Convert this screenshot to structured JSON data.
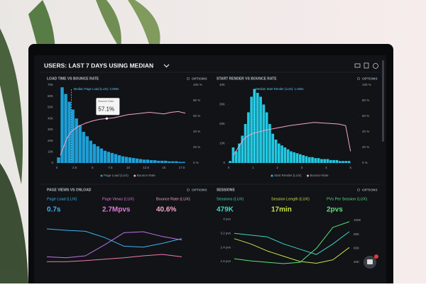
{
  "header": {
    "title": "USERS: LAST 7 DAYS USING MEDIAN"
  },
  "panels": [
    {
      "title": "LOAD TIME VS BOUNCE RATE",
      "options": "OPTIONS",
      "chart": {
        "type": "histogram",
        "bars": {
          "name": "Page Load (LUX)",
          "color": "#1e9fd6",
          "bins": [
            0,
            0.5,
            1,
            1.5,
            2,
            2.5,
            3,
            3.5,
            4,
            4.5,
            5,
            5.5,
            6,
            6.5,
            7,
            7.5,
            8,
            8.5,
            9,
            9.5,
            10,
            10.5,
            11,
            11.5,
            12,
            12.5,
            13,
            13.5,
            14,
            14.5,
            15,
            15.5,
            16,
            16.5,
            17,
            17.5,
            18
          ],
          "values": [
            5000,
            68000,
            62000,
            55000,
            48000,
            40000,
            34000,
            28000,
            24000,
            20000,
            17000,
            15000,
            13000,
            11000,
            10000,
            9000,
            8000,
            7000,
            6000,
            5500,
            5000,
            4500,
            4000,
            3500,
            3000,
            3000,
            2500,
            2500,
            2000,
            2000,
            2000,
            1500,
            1500,
            1500,
            1000,
            1000
          ]
        },
        "series": [
          {
            "name": "Bounce Rate",
            "color": "#f2a6c6",
            "axis": "y2",
            "x": [
              0.5,
              1,
              1.5,
              2,
              3,
              4,
              5,
              6,
              7,
              8,
              9,
              10,
              11,
              12,
              13,
              14,
              15,
              16,
              17,
              18
            ],
            "values": [
              10,
              22,
              33,
              40,
              47,
              51,
              54,
              56,
              57.1,
              58,
              60,
              62,
              63,
              64,
              65,
              64,
              63,
              65,
              66,
              64
            ]
          }
        ],
        "xlim": [
          0,
          18.5
        ],
        "xticks": [
          0,
          2.5,
          5,
          7.5,
          10,
          12.5,
          15,
          17.5
        ],
        "ylim": [
          0,
          70000
        ],
        "yticks": [
          0,
          {
            "value": 10000,
            "label": "10K"
          },
          {
            "value": 20000,
            "label": "20K"
          },
          {
            "value": 30000,
            "label": "30K"
          },
          {
            "value": 40000,
            "label": "40K"
          },
          {
            "value": 50000,
            "label": "50K"
          },
          {
            "value": 60000,
            "label": "60K"
          },
          {
            "value": 70000,
            "label": "70K"
          }
        ],
        "y2lim": [
          0,
          100
        ],
        "y2ticks": [
          {
            "value": 0,
            "label": "0 %"
          },
          {
            "value": 20,
            "label": "20 %"
          },
          {
            "value": 40,
            "label": "40 %"
          },
          {
            "value": 60,
            "label": "60 %"
          },
          {
            "value": 80,
            "label": "80 %"
          },
          {
            "value": 100,
            "label": "100 %"
          }
        ],
        "median": {
          "label": "Median Page Load (LUX): 2.050s",
          "value": 2.05
        },
        "tooltip": {
          "title": "Bounce Rate",
          "text": "57.1%",
          "x": 7,
          "value": 57.1
        }
      }
    },
    {
      "title": "START RENDER VS BOUNCE RATE",
      "options": "OPTIONS",
      "chart": {
        "type": "histogram",
        "bars": {
          "name": "Start Render (LUX)",
          "color": "#22c8e2",
          "bins": [
            0,
            0.125,
            0.25,
            0.375,
            0.5,
            0.625,
            0.75,
            0.875,
            1,
            1.125,
            1.25,
            1.375,
            1.5,
            1.625,
            1.75,
            1.875,
            2,
            2.125,
            2.25,
            2.375,
            2.5,
            2.625,
            2.75,
            2.875,
            3,
            3.125,
            3.25,
            3.375,
            3.5,
            3.625,
            3.75,
            3.875,
            4,
            4.125,
            4.25,
            4.375,
            4.5,
            4.625,
            4.75,
            4.875,
            5
          ],
          "values": [
            1000,
            8000,
            6000,
            10000,
            14000,
            20000,
            26000,
            34000,
            38000,
            36000,
            34000,
            30000,
            26000,
            20000,
            15000,
            12000,
            10000,
            9000,
            8000,
            7000,
            6000,
            5500,
            5000,
            4500,
            4000,
            3500,
            3000,
            3000,
            2500,
            2500,
            2000,
            2000,
            2000,
            1500,
            1500,
            1500,
            1000,
            1000,
            1000,
            1000
          ]
        },
        "series": [
          {
            "name": "Bounce Rate",
            "color": "#f2a6c6",
            "axis": "y2",
            "x": [
              0.2,
              0.4,
              0.6,
              0.8,
              1,
              1.5,
              2,
              2.5,
              3,
              3.5,
              4,
              4.5,
              4.8,
              5
            ],
            "values": [
              10,
              20,
              30,
              35,
              38,
              42,
              45,
              48,
              50,
              52,
              51,
              50,
              48,
              15
            ]
          }
        ],
        "xlim": [
          0,
          5.3
        ],
        "xticks": [
          0,
          1,
          2,
          3,
          4,
          5
        ],
        "ylim": [
          0,
          40000
        ],
        "yticks": [
          0,
          {
            "value": 10000,
            "label": "10K"
          },
          {
            "value": 20000,
            "label": "20K"
          },
          {
            "value": 30000,
            "label": "30K"
          },
          {
            "value": 40000,
            "label": "40K"
          }
        ],
        "y2lim": [
          0,
          100
        ],
        "y2ticks": [
          {
            "value": 0,
            "label": "0 %"
          },
          {
            "value": 20,
            "label": "20 %"
          },
          {
            "value": 40,
            "label": "40 %"
          },
          {
            "value": 60,
            "label": "60 %"
          },
          {
            "value": 80,
            "label": "80 %"
          },
          {
            "value": 100,
            "label": "100 %"
          }
        ],
        "median": {
          "label": "Median Start Render (LUX): 1.025s",
          "value": 1.025
        }
      }
    },
    {
      "title": "PAGE VIEWS VS ONLOAD",
      "options": "OPTIONS",
      "metrics": [
        {
          "label": "Page Load (LUX)",
          "value": "0.7s",
          "color": "#3db4f2"
        },
        {
          "label": "Page Views (LUX)",
          "value": "2.7Mpvs",
          "color": "#e07ad8"
        },
        {
          "label": "Bounce Rate (LUX)",
          "value": "40.6%",
          "color": "#f5a5c8"
        }
      ],
      "chart": {
        "type": "line",
        "ylim": [
          0,
          100
        ],
        "series": [
          {
            "color": "#3db4f2",
            "values": [
              78,
              75,
              73,
              60,
              42,
              40,
              48,
              58
            ]
          },
          {
            "color": "#c070e0",
            "values": [
              20,
              18,
              22,
              45,
              70,
              72,
              62,
              55
            ]
          },
          {
            "color": "#f07aa8",
            "values": [
              10,
              10,
              12,
              15,
              18,
              22,
              25,
              20
            ]
          }
        ]
      }
    },
    {
      "title": "SESSIONS",
      "options": "OPTIONS",
      "metrics": [
        {
          "label": "Sessions (LUX)",
          "value": "479K",
          "color": "#3fd6c0"
        },
        {
          "label": "Session Length (LUX)",
          "value": "17min",
          "color": "#c8e04a"
        },
        {
          "label": "PVs Per Session (LUX)",
          "value": "2pvs",
          "color": "#5ce07a"
        }
      ],
      "chart": {
        "type": "line",
        "ylim": [
          1.4,
          4.1
        ],
        "yticks": [
          {
            "value": 1.6,
            "label": "1.6 pvs"
          },
          {
            "value": 2.4,
            "label": "2.4 pvs"
          },
          {
            "value": 3.2,
            "label": "3.2 pvs"
          },
          {
            "value": 4,
            "label": "4 pvs"
          }
        ],
        "y2lim": [
          36000,
          104000
        ],
        "y2ticks": [
          {
            "value": 40000,
            "label": "40K"
          },
          {
            "value": 60000,
            "label": "60K"
          },
          {
            "value": 80000,
            "label": "80K"
          },
          {
            "value": 100000,
            "label": "100K"
          }
        ],
        "series": [
          {
            "color": "#3fd6c0",
            "values": [
              3.2,
              3.1,
              3,
              2.6,
              2.3,
              2,
              2.6,
              3.3
            ]
          },
          {
            "color": "#c8e04a",
            "values": [
              2.9,
              2.6,
              2.2,
              1.9,
              1.6,
              1.5,
              1.7,
              2.4
            ]
          },
          {
            "color": "#5ce07a",
            "axis": "y2",
            "values": [
              45000,
              42000,
              40000,
              38000,
              40000,
              60000,
              90000,
              98000
            ]
          }
        ]
      }
    }
  ]
}
